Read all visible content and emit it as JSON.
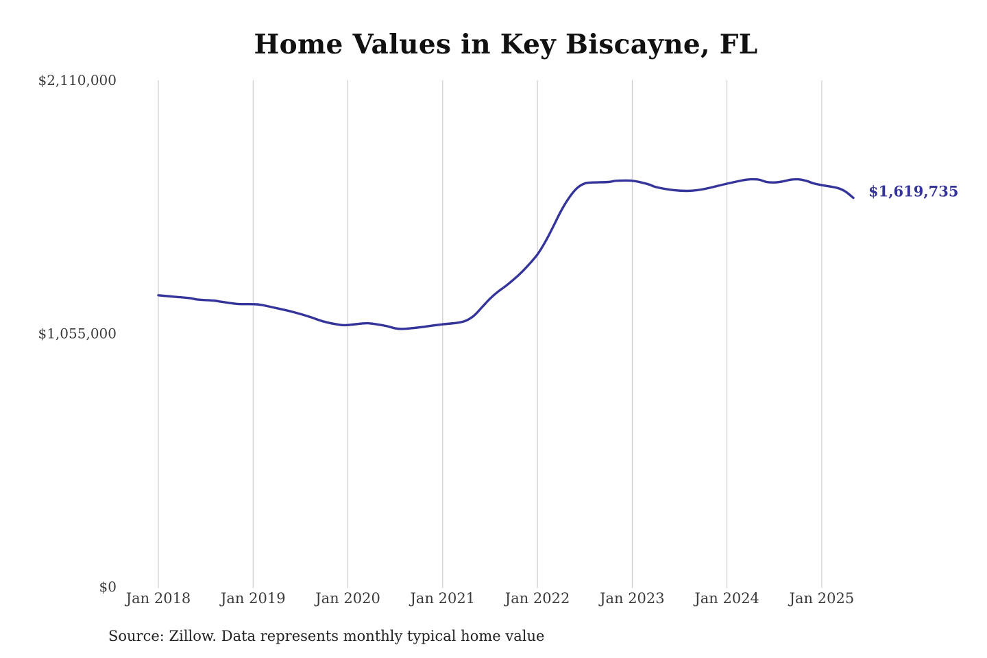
{
  "chart_data": {
    "type": "line",
    "title": "Home Values in Key Biscayne, FL",
    "xlabel": "",
    "ylabel": "",
    "ylim": [
      0,
      2110000
    ],
    "y_ticks": [
      {
        "value": 0,
        "label": "$0"
      },
      {
        "value": 1055000,
        "label": "$1,055,000"
      },
      {
        "value": 2110000,
        "label": "$2,110,000"
      }
    ],
    "x_range": [
      "2018-01",
      "2025-05"
    ],
    "x_ticks": [
      {
        "date": "2018-01",
        "label": "Jan 2018"
      },
      {
        "date": "2019-01",
        "label": "Jan 2019"
      },
      {
        "date": "2020-01",
        "label": "Jan 2020"
      },
      {
        "date": "2021-01",
        "label": "Jan 2021"
      },
      {
        "date": "2022-01",
        "label": "Jan 2022"
      },
      {
        "date": "2023-01",
        "label": "Jan 2023"
      },
      {
        "date": "2024-01",
        "label": "Jan 2024"
      },
      {
        "date": "2025-01",
        "label": "Jan 2025"
      }
    ],
    "grid": {
      "vertical": true,
      "horizontal": false
    },
    "line_color": "#35349a",
    "series": [
      {
        "points": [
          [
            "2018-01",
            1214000
          ],
          [
            "2018-03",
            1208000
          ],
          [
            "2018-05",
            1202000
          ],
          [
            "2018-06",
            1196000
          ],
          [
            "2018-08",
            1192000
          ],
          [
            "2018-09",
            1187000
          ],
          [
            "2018-11",
            1178000
          ],
          [
            "2019-01",
            1177000
          ],
          [
            "2019-02",
            1174000
          ],
          [
            "2019-04",
            1160000
          ],
          [
            "2019-06",
            1145000
          ],
          [
            "2019-08",
            1126000
          ],
          [
            "2019-10",
            1104000
          ],
          [
            "2019-12",
            1091000
          ],
          [
            "2020-01",
            1090000
          ],
          [
            "2020-03",
            1097000
          ],
          [
            "2020-04",
            1096000
          ],
          [
            "2020-06",
            1085000
          ],
          [
            "2020-07",
            1076000
          ],
          [
            "2020-08",
            1074000
          ],
          [
            "2020-10",
            1080000
          ],
          [
            "2020-12",
            1089000
          ],
          [
            "2021-01",
            1093000
          ],
          [
            "2021-03",
            1100000
          ],
          [
            "2021-04",
            1109000
          ],
          [
            "2021-05",
            1130000
          ],
          [
            "2021-06",
            1165000
          ],
          [
            "2021-07",
            1200000
          ],
          [
            "2021-08",
            1229000
          ],
          [
            "2021-09",
            1253000
          ],
          [
            "2021-10",
            1280000
          ],
          [
            "2021-11",
            1310000
          ],
          [
            "2021-12",
            1345000
          ],
          [
            "2022-01",
            1384000
          ],
          [
            "2022-02",
            1437000
          ],
          [
            "2022-03",
            1500000
          ],
          [
            "2022-04",
            1566000
          ],
          [
            "2022-05",
            1620000
          ],
          [
            "2022-06",
            1660000
          ],
          [
            "2022-07",
            1680000
          ],
          [
            "2022-08",
            1684000
          ],
          [
            "2022-10",
            1686000
          ],
          [
            "2022-11",
            1691000
          ],
          [
            "2023-01",
            1691000
          ],
          [
            "2023-03",
            1677000
          ],
          [
            "2023-04",
            1665000
          ],
          [
            "2023-06",
            1653000
          ],
          [
            "2023-08",
            1649000
          ],
          [
            "2023-10",
            1656000
          ],
          [
            "2024-01",
            1679000
          ],
          [
            "2024-03",
            1693000
          ],
          [
            "2024-04",
            1697000
          ],
          [
            "2024-05",
            1696000
          ],
          [
            "2024-06",
            1686000
          ],
          [
            "2024-07",
            1684000
          ],
          [
            "2024-08",
            1688000
          ],
          [
            "2024-09",
            1695000
          ],
          [
            "2024-10",
            1697000
          ],
          [
            "2024-11",
            1691000
          ],
          [
            "2024-12",
            1680000
          ],
          [
            "2025-01",
            1673000
          ],
          [
            "2025-03",
            1661000
          ],
          [
            "2025-04",
            1646000
          ],
          [
            "2025-05",
            1619735
          ]
        ]
      }
    ],
    "end_label": "$1,619,735"
  },
  "source_note": "Source: Zillow. Data represents monthly typical home value"
}
